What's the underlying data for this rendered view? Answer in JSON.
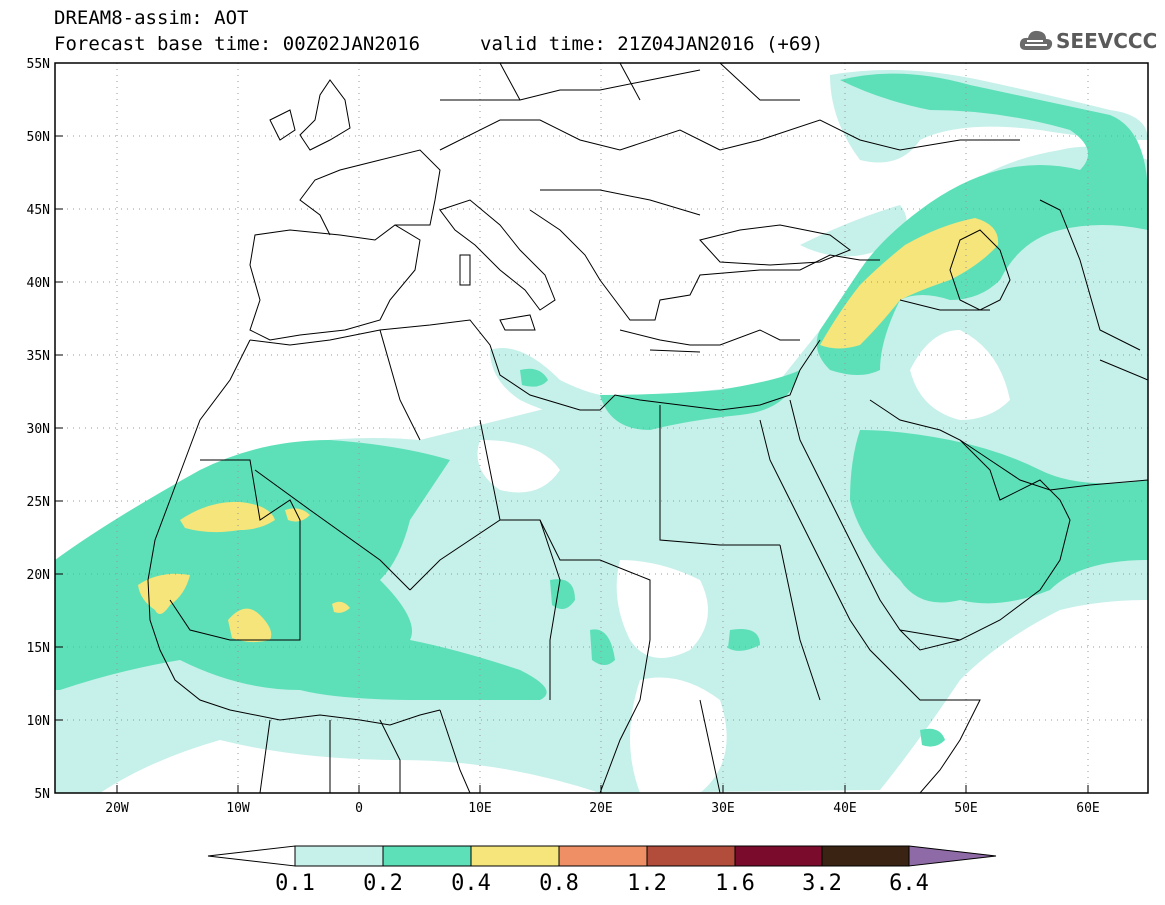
{
  "header": {
    "title_line1": "DREAM8-assim: AOT",
    "title_line2": "Forecast base time: 00Z02JAN2016",
    "valid_time": "valid time: 21Z04JAN2016 (+69)"
  },
  "logo": {
    "text": "SEEVCCC",
    "icon": "cloud-icon"
  },
  "map": {
    "lat_labels": [
      "55N",
      "50N",
      "45N",
      "40N",
      "35N",
      "30N",
      "25N",
      "20N",
      "15N",
      "10N",
      "5N"
    ],
    "lon_labels": [
      "20W",
      "10W",
      "0",
      "10E",
      "20E",
      "30E",
      "40E",
      "50E",
      "60E"
    ],
    "lat_range": [
      5,
      55
    ],
    "lon_range": [
      -25,
      65
    ]
  },
  "colorbar": {
    "levels": [
      "0.1",
      "0.2",
      "0.4",
      "0.8",
      "1.2",
      "1.6",
      "3.2",
      "6.4"
    ],
    "colors": [
      "#ffffff",
      "#c6f0ea",
      "#5de0b8",
      "#f5e57a",
      "#ee8f65",
      "#b14d3a",
      "#7a0b2c",
      "#3a2312",
      "#8e6aa6"
    ]
  },
  "colors": {
    "aot_01_02": "#c6f0ea",
    "aot_02_04": "#5de0b8",
    "aot_04_08": "#f5e57a"
  }
}
